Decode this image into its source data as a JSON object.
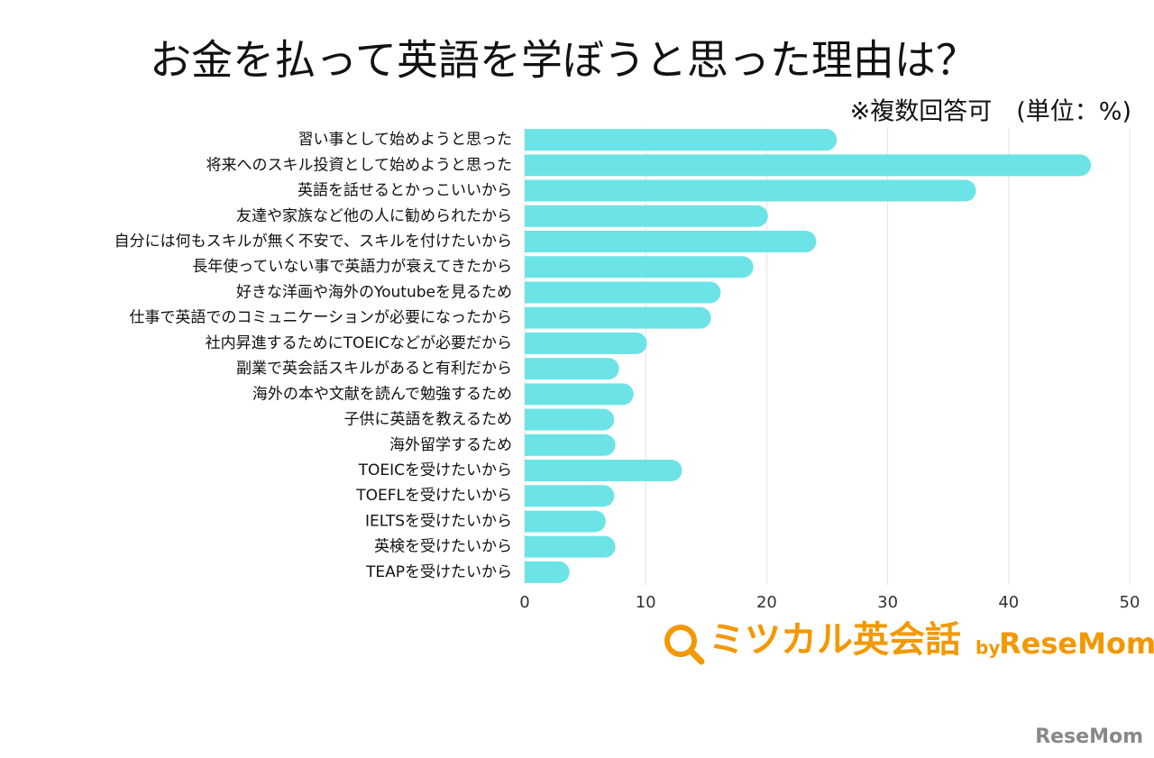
{
  "chart_data": {
    "type": "barh",
    "title": "お金を払って英語を学ぼうと思った理由は？",
    "subtitle": "※複数回答可　(単位：%)",
    "categories": [
      "習い事として始めようと思った",
      "将来へのスキル投資として始めようと思った",
      "英語を話せるとかっこいいから",
      "友達や家族など他の人に勧められたから",
      "自分には何もスキルが無く不安で、スキルを付けたいから",
      "長年使っていない事で英語力が衰えてきたから",
      "好きな洋画や海外のYoutubeを見るため",
      "仕事で英語でのコミュニケーションが必要になったから",
      "社内昇進するためにTOEICなどが必要だから",
      "副業で英会話スキルがあると有利だから",
      "海外の本や文献を読んで勉強するため",
      "子供に英語を教えるため",
      "海外留学するため",
      "TOEICを受けたいから",
      "TOEFLを受けたいから",
      "IELTSを受けたいから",
      "英検を受けたいから",
      "TEAPを受けたいから"
    ],
    "values": [
      25.8,
      46.8,
      37.3,
      20.1,
      24.1,
      18.9,
      16.2,
      15.4,
      10.1,
      7.8,
      9.0,
      7.4,
      7.5,
      13.0,
      7.4,
      6.7,
      7.5,
      3.7
    ],
    "color": "#6ce3e6",
    "xlim": [
      0,
      50
    ],
    "xticks": [
      0,
      10,
      20,
      30,
      40,
      50
    ],
    "grid": true,
    "logo_name": "ミツカル英会話",
    "logo_by": "by",
    "logo_brand": "ReseMom",
    "watermark": "ReseMom"
  }
}
